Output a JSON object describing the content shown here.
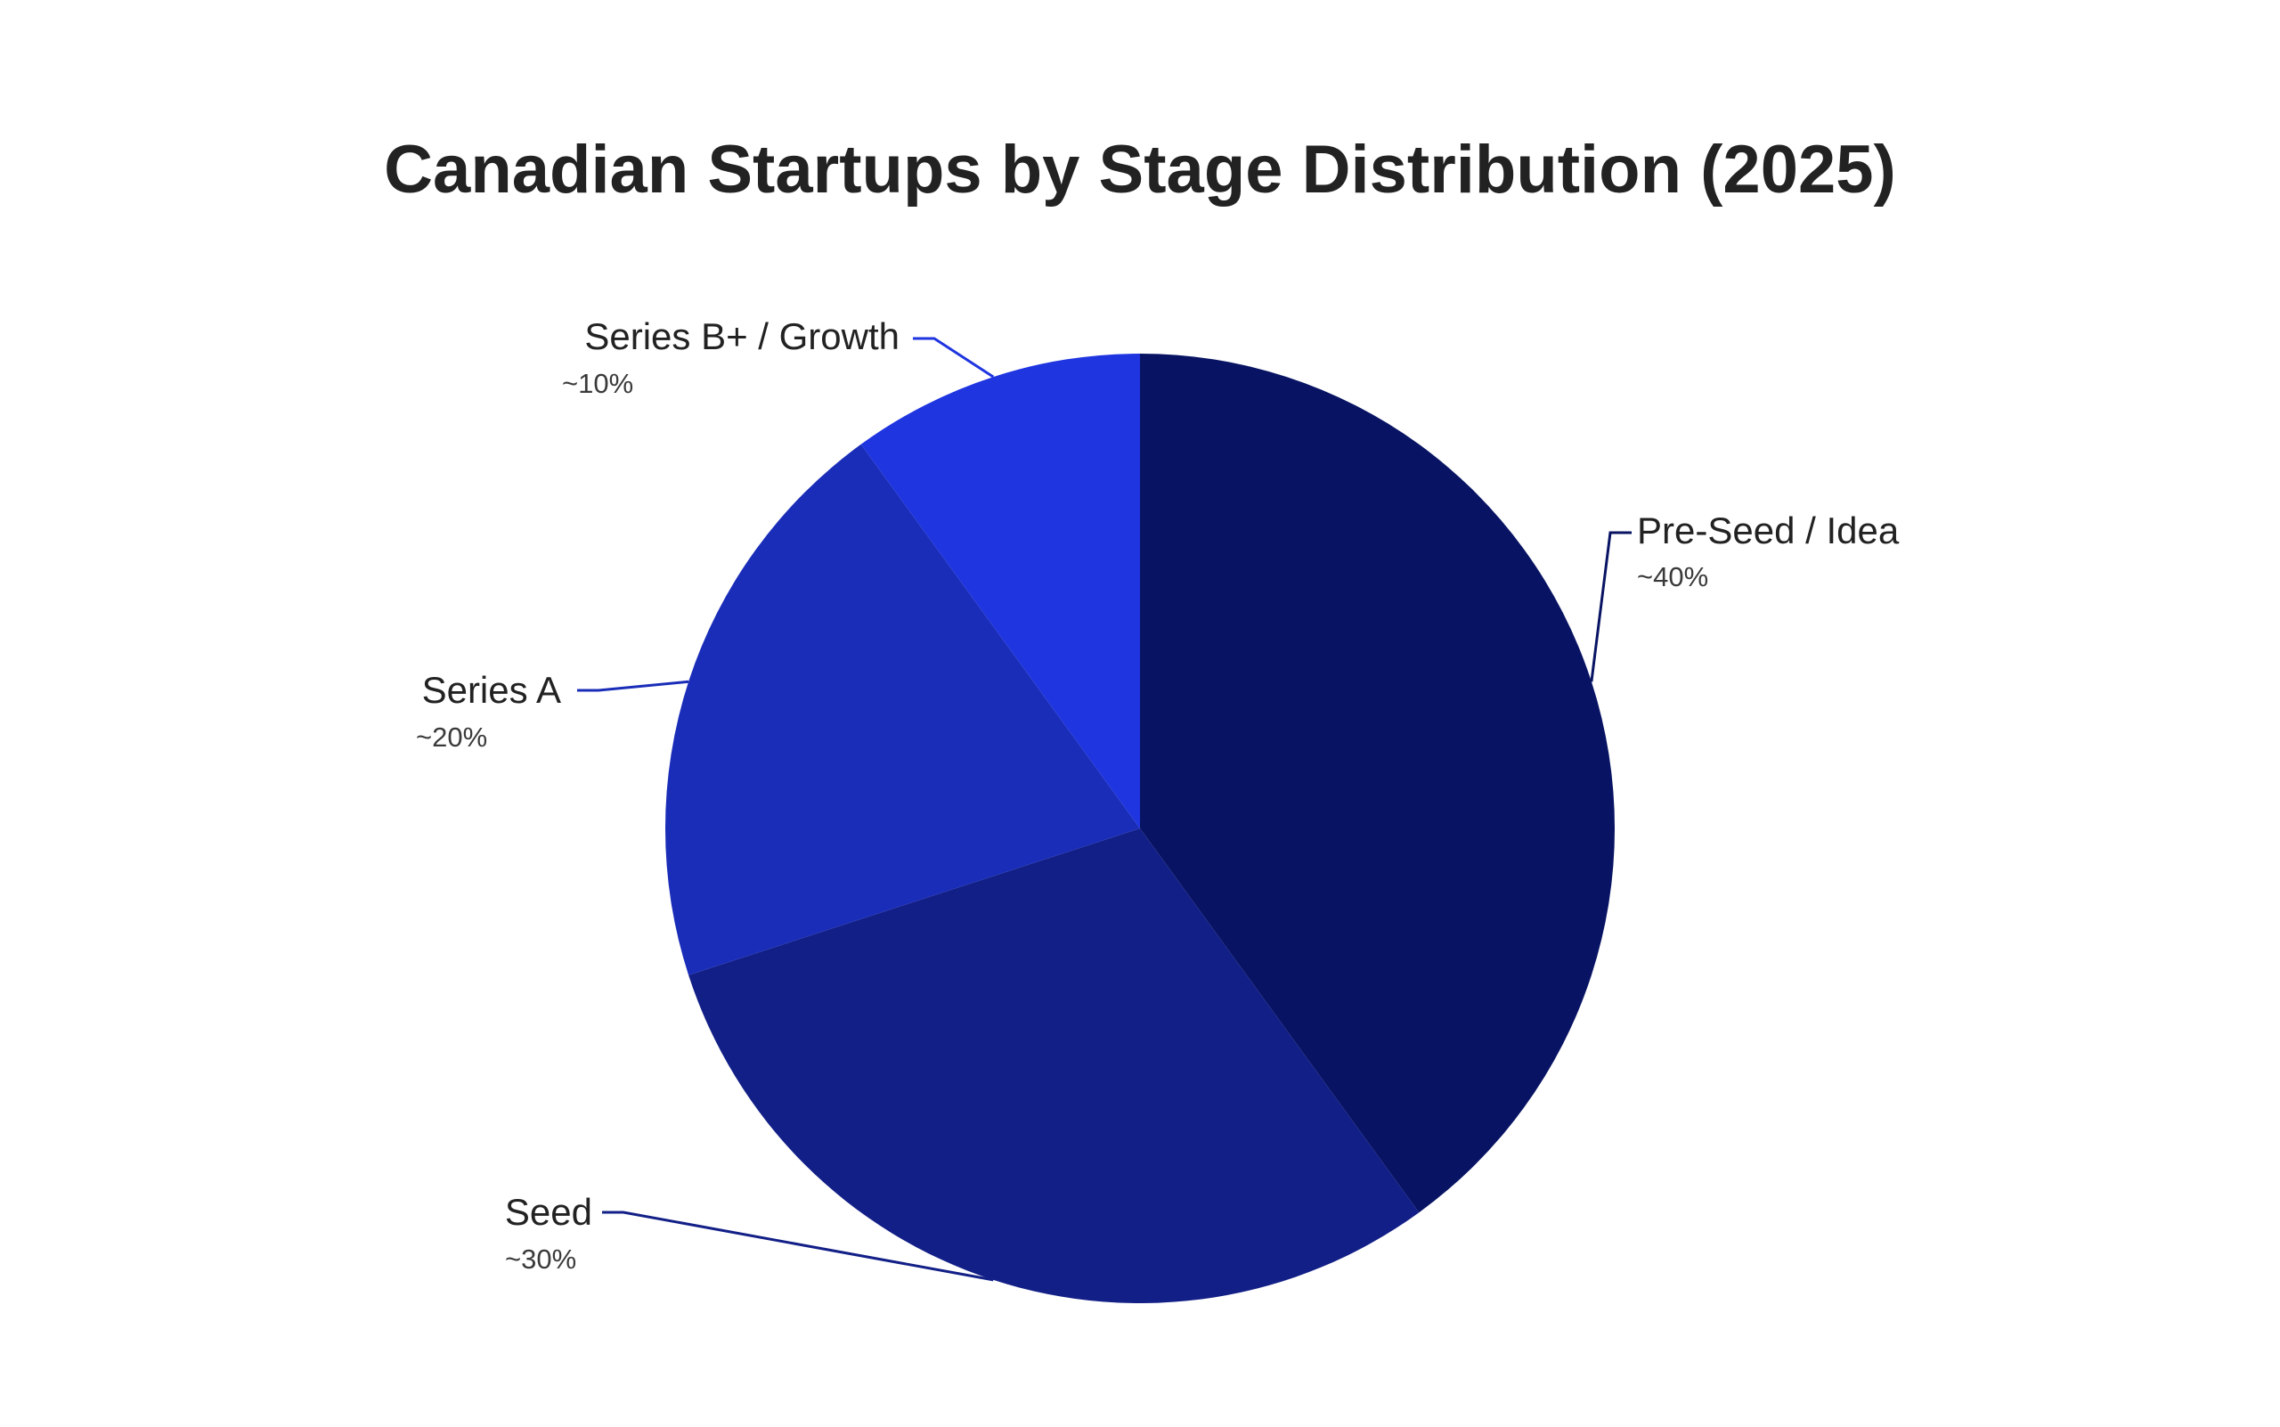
{
  "chart_data": {
    "type": "pie",
    "title": "Canadian Startups by Stage Distribution (2025)",
    "slices": [
      {
        "name": "Pre-Seed / Idea",
        "value": 40,
        "value_label": "~40%",
        "color": "#081463"
      },
      {
        "name": "Seed",
        "value": 30,
        "value_label": "~30%",
        "color": "#121f87"
      },
      {
        "name": "Series A",
        "value": 20,
        "value_label": "~20%",
        "color": "#1a2db8"
      },
      {
        "name": "Series B+ / Growth",
        "value": 10,
        "value_label": "~10%",
        "color": "#1f35e0"
      }
    ],
    "start_angle": "12 o'clock",
    "direction": "clockwise",
    "labels": "outside with leader lines"
  },
  "colors": {
    "background": "#ffffff",
    "title_text": "#222222",
    "label_text": "#222222"
  }
}
